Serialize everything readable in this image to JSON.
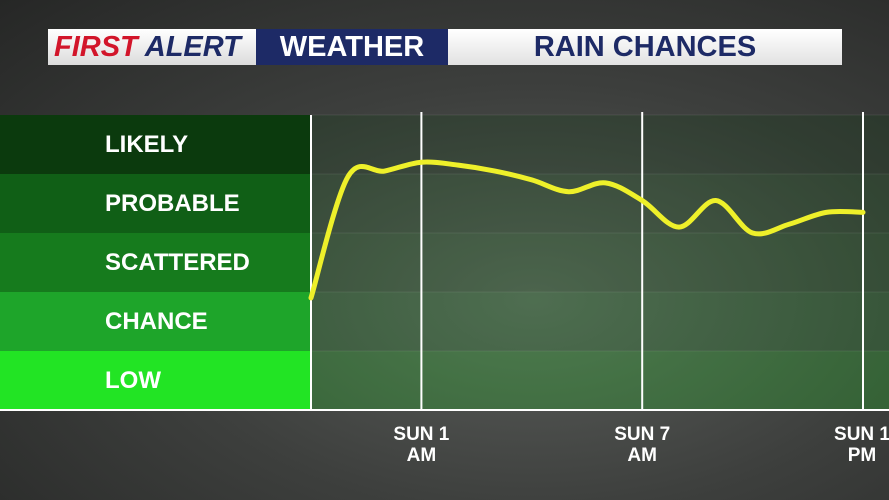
{
  "header": {
    "brand_first": "FIRST",
    "brand_alert": "ALERT",
    "brand_weather": "WEATHER"
  },
  "chart_data": {
    "type": "line",
    "title": "RAIN CHANCES",
    "categories": [
      null,
      null,
      null,
      "SUN 1 AM",
      null,
      null,
      null,
      null,
      null,
      "SUN 7 AM",
      null,
      null,
      null,
      null,
      null,
      "SUN 1 PM"
    ],
    "series": [
      {
        "name": "Rain chance",
        "color": "#eef02a",
        "values": [
          1.9,
          3.95,
          4.05,
          4.2,
          4.15,
          4.05,
          3.9,
          3.7,
          3.85,
          3.55,
          3.1,
          3.55,
          3.0,
          3.15,
          3.35,
          3.35
        ]
      }
    ],
    "ylim": [
      0,
      5
    ],
    "yticks": [
      {
        "value": 4.5,
        "label": "LIKELY"
      },
      {
        "value": 3.5,
        "label": "PROBABLE"
      },
      {
        "value": 2.5,
        "label": "SCATTERED"
      },
      {
        "value": 1.5,
        "label": "CHANCE"
      },
      {
        "value": 0.5,
        "label": "LOW"
      }
    ],
    "band_colors": [
      "#0b3a0d",
      "#105f16",
      "#167b1d",
      "#1ea52a",
      "#22e424"
    ],
    "grid": true
  }
}
